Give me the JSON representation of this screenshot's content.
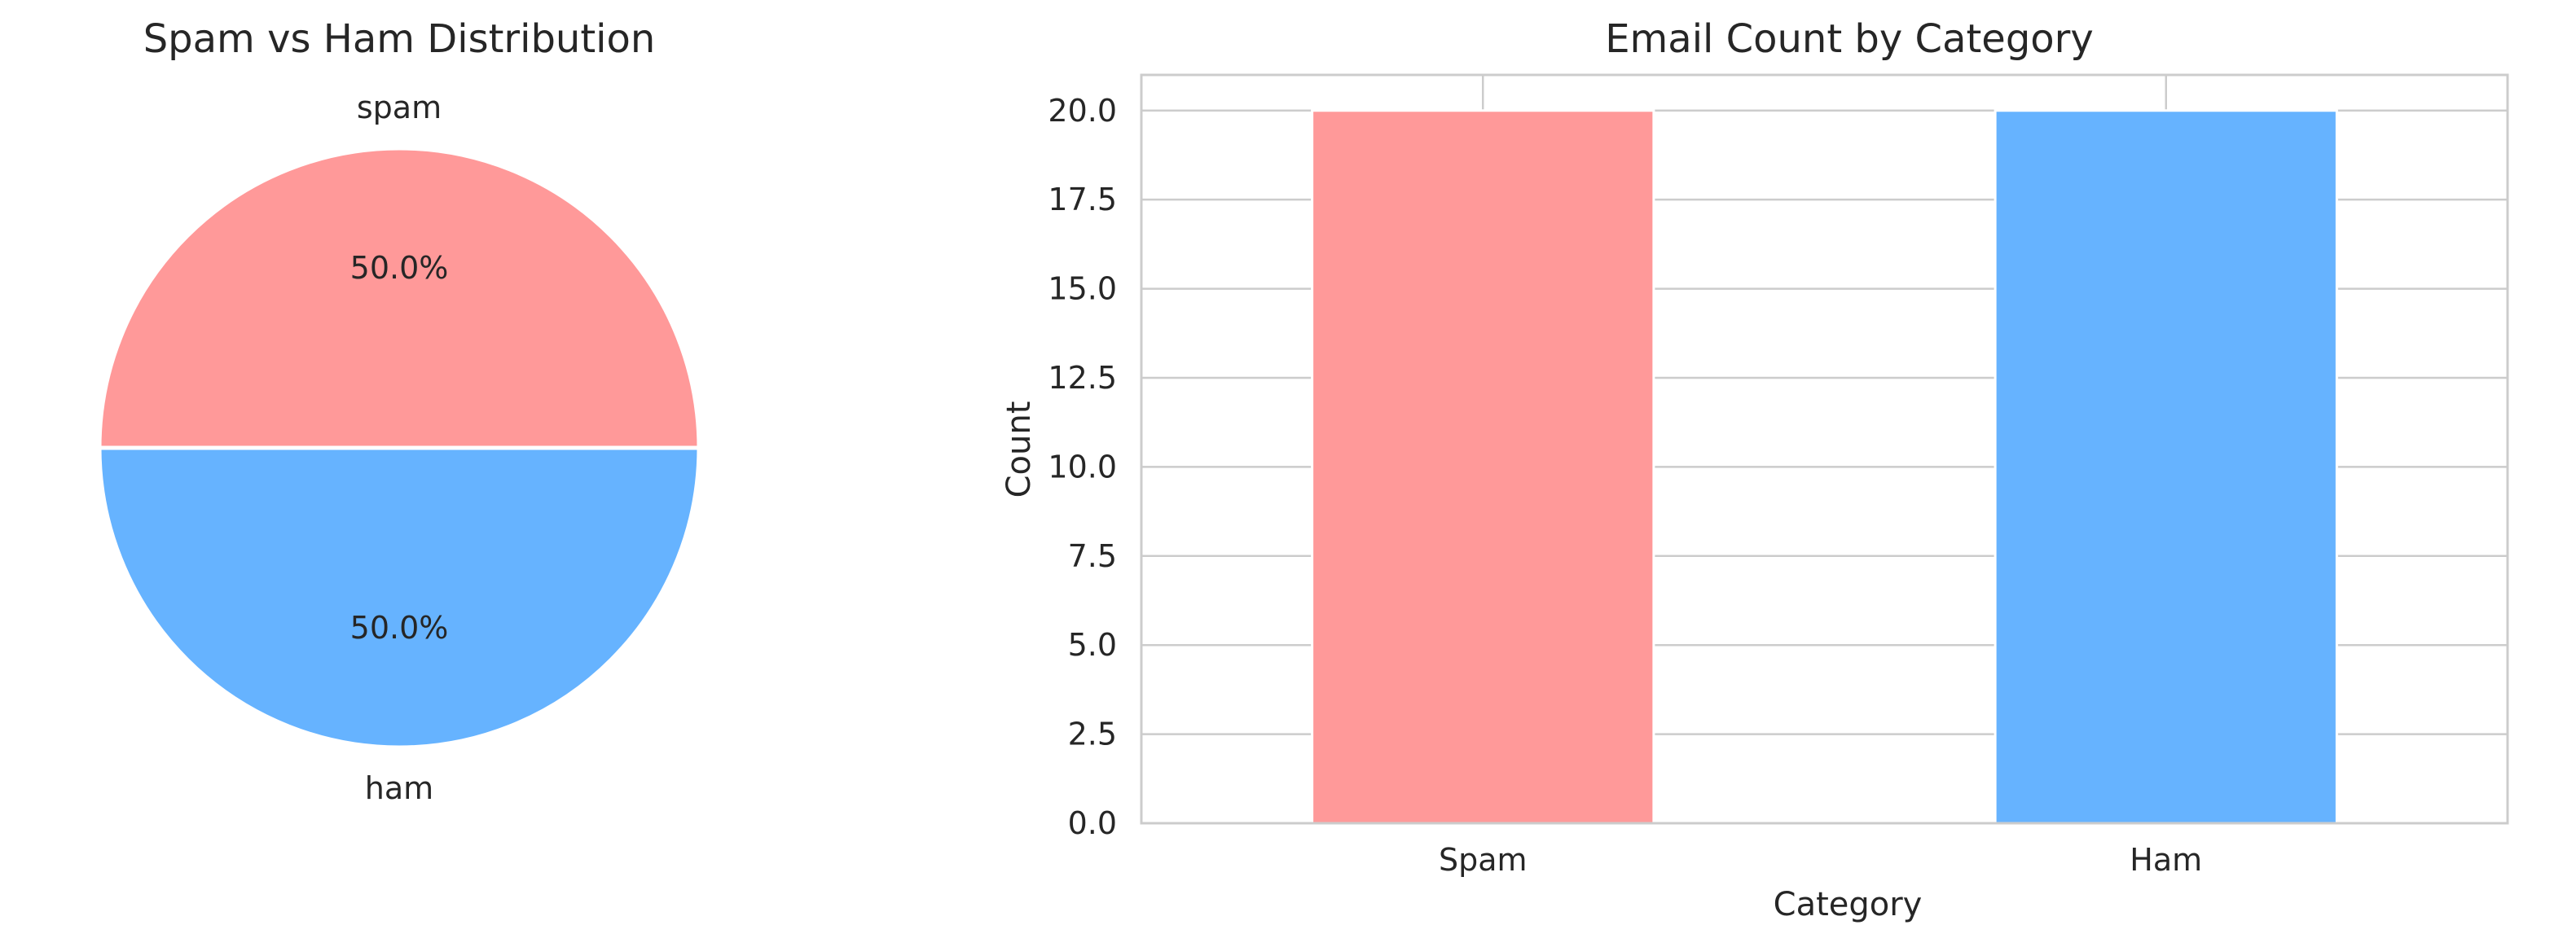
{
  "chart_data": [
    {
      "type": "pie",
      "title": "Spam vs Ham Distribution",
      "labels": [
        "spam",
        "ham"
      ],
      "values": [
        20,
        20
      ],
      "autopct": [
        "50.0%",
        "50.0%"
      ],
      "colors": [
        "#ff9999",
        "#66b3ff"
      ],
      "edge_color": "#ffffff"
    },
    {
      "type": "bar",
      "title": "Email Count by Category",
      "categories": [
        "Spam",
        "Ham"
      ],
      "values": [
        20,
        20
      ],
      "colors": [
        "#ff9999",
        "#66b3ff"
      ],
      "xlabel": "Category",
      "ylabel": "Count",
      "ylim": [
        0,
        21
      ],
      "yticks": [
        0,
        2.5,
        5,
        7.5,
        10,
        12.5,
        15,
        17.5,
        20
      ],
      "ytick_labels": [
        "0.0",
        "2.5",
        "5.0",
        "7.5",
        "10.0",
        "12.5",
        "15.0",
        "17.5",
        "20.0"
      ],
      "grid": true
    }
  ]
}
